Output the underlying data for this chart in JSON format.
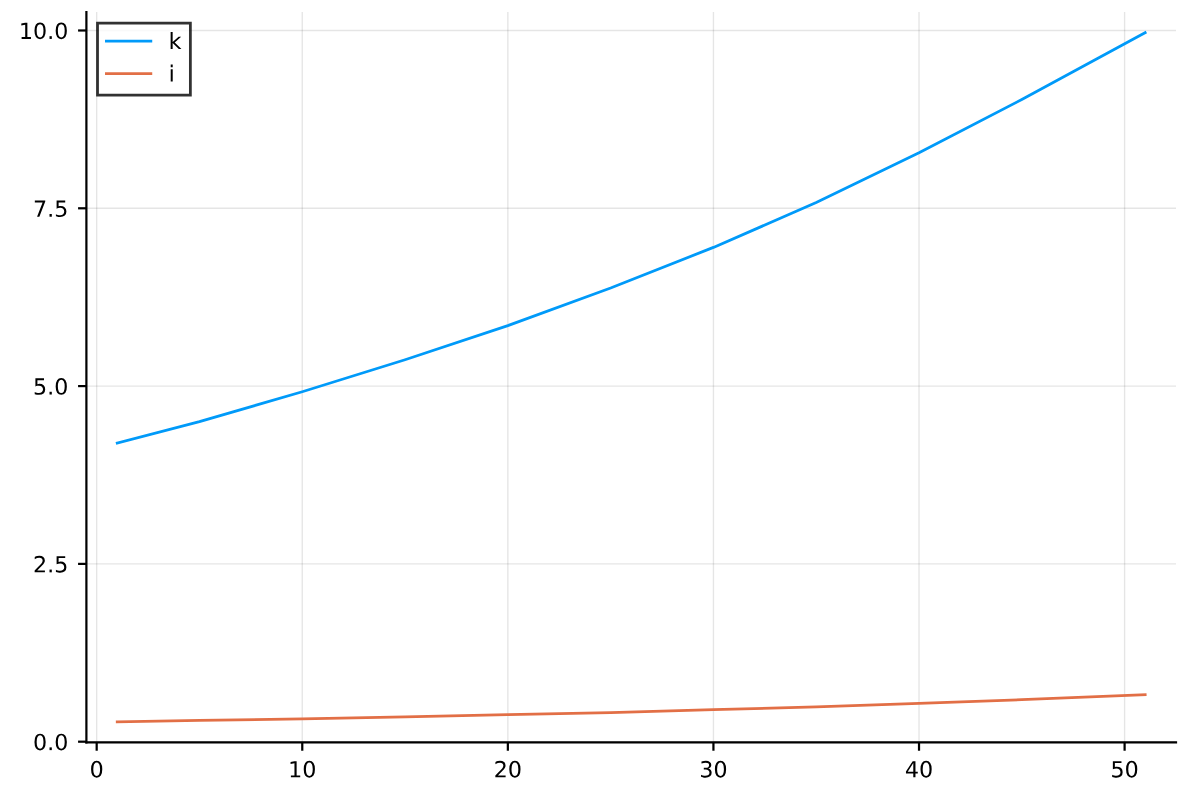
{
  "chart_data": {
    "type": "line",
    "x": [
      1,
      5,
      10,
      15,
      20,
      25,
      30,
      35,
      40,
      45,
      51
    ],
    "series": [
      {
        "name": "k",
        "color": "#009af9",
        "values": [
          4.2,
          4.5,
          4.92,
          5.37,
          5.85,
          6.38,
          6.95,
          7.58,
          8.28,
          9.03,
          9.97
        ]
      },
      {
        "name": "i",
        "color": "#e26f46",
        "values": [
          0.28,
          0.3,
          0.32,
          0.35,
          0.38,
          0.41,
          0.45,
          0.49,
          0.54,
          0.59,
          0.66
        ]
      }
    ],
    "xlim": [
      -0.5,
      52.5
    ],
    "ylim": [
      -0.01,
      10.26
    ],
    "xticks": [
      0,
      10,
      20,
      30,
      40,
      50
    ],
    "yticks": [
      {
        "value": 0,
        "label": "0.0"
      },
      {
        "value": 2.5,
        "label": "2.5"
      },
      {
        "value": 5,
        "label": "5.0"
      },
      {
        "value": 7.5,
        "label": "7.5"
      },
      {
        "value": 10,
        "label": "10.0"
      }
    ],
    "grid": true,
    "legend": "top left",
    "marker": "none",
    "line_style": "solid"
  }
}
